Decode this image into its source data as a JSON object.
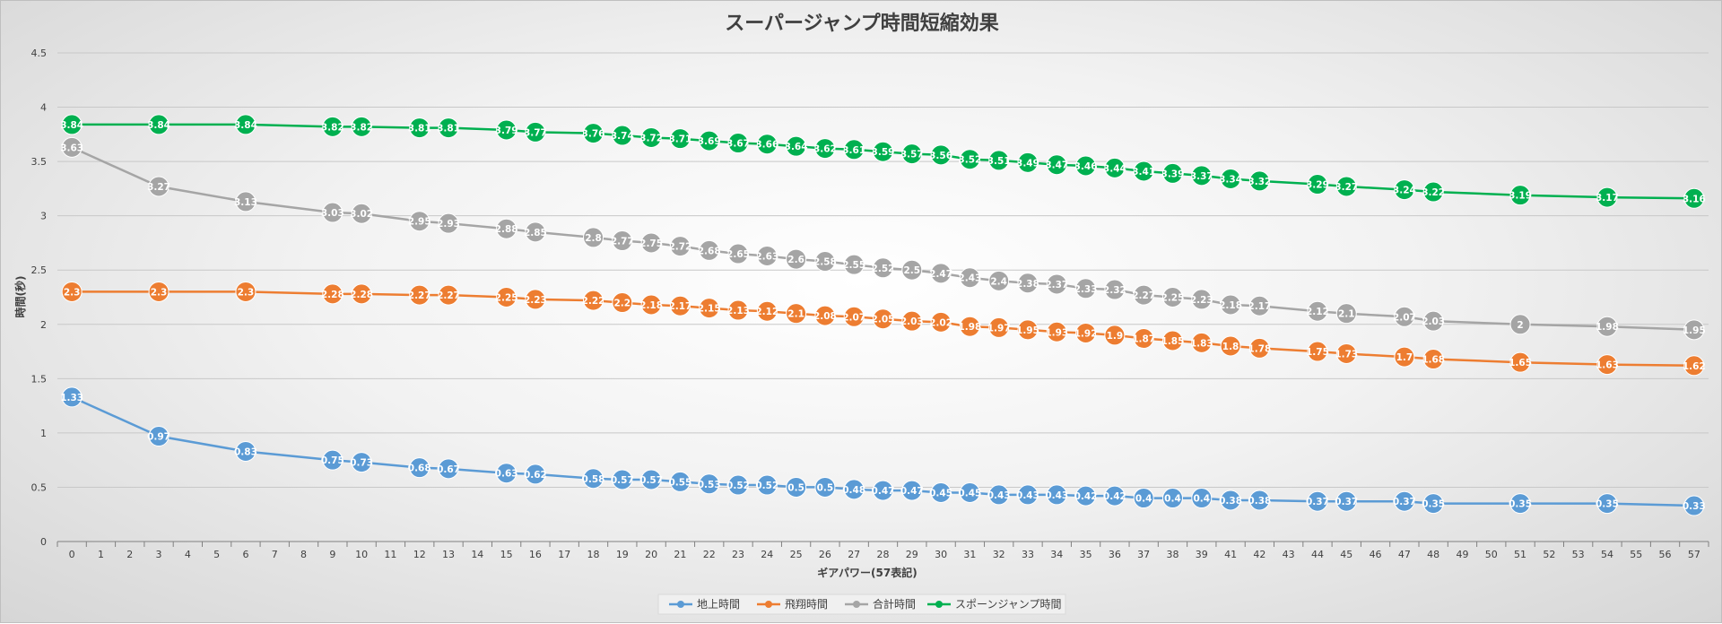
{
  "chart_data": {
    "type": "line",
    "title": "スーパージャンプ時間短縮効果",
    "xlabel": "ギアパワー(57表記)",
    "ylabel": "時間(秒)",
    "ylim": [
      0,
      4.5
    ],
    "yticks": [
      "0",
      "0.5",
      "1",
      "1.5",
      "2",
      "2.5",
      "3",
      "3.5",
      "4",
      "4.5"
    ],
    "categories": [
      "0",
      "1",
      "2",
      "3",
      "4",
      "5",
      "6",
      "7",
      "8",
      "9",
      "10",
      "11",
      "12",
      "13",
      "14",
      "15",
      "16",
      "17",
      "18",
      "19",
      "20",
      "21",
      "22",
      "23",
      "24",
      "25",
      "26",
      "27",
      "28",
      "29",
      "30",
      "31",
      "32",
      "33",
      "34",
      "35",
      "36",
      "37",
      "38",
      "39",
      "41",
      "42",
      "43",
      "44",
      "45",
      "46",
      "47",
      "48",
      "49",
      "50",
      "51",
      "52",
      "53",
      "54",
      "55",
      "56",
      "57"
    ],
    "grid": true,
    "legend_position": "bottom",
    "series": [
      {
        "name": "地上時間",
        "color": "#5b9bd5",
        "x": [
          "0",
          "3",
          "6",
          "9",
          "10",
          "12",
          "13",
          "15",
          "16",
          "18",
          "19",
          "20",
          "21",
          "22",
          "23",
          "24",
          "25",
          "26",
          "27",
          "28",
          "29",
          "30",
          "31",
          "32",
          "33",
          "34",
          "35",
          "36",
          "37",
          "38",
          "39",
          "41",
          "42",
          "44",
          "45",
          "47",
          "48",
          "51",
          "54",
          "57"
        ],
        "values": [
          1.33,
          0.97,
          0.83,
          0.75,
          0.73,
          0.68,
          0.67,
          0.63,
          0.62,
          0.58,
          0.57,
          0.57,
          0.55,
          0.53,
          0.52,
          0.52,
          0.5,
          0.5,
          0.48,
          0.47,
          0.47,
          0.45,
          0.45,
          0.43,
          0.43,
          0.43,
          0.42,
          0.42,
          0.4,
          0.4,
          0.4,
          0.38,
          0.38,
          0.37,
          0.37,
          0.37,
          0.35,
          0.35,
          0.35,
          0.33
        ],
        "labels": [
          "1.33",
          "0.97",
          "0.83",
          "0.75",
          "0.73",
          "0.68",
          "0.67",
          "0.63",
          "0.62",
          "0.58",
          "0.57",
          "0.57",
          "0.55",
          "0.53",
          "0.52",
          "0.52",
          "0.5",
          "0.5",
          "0.48",
          "0.47",
          "0.47",
          "0.45",
          "0.45",
          "0.43",
          "0.43",
          "0.43",
          "0.42",
          "0.42",
          "0.4",
          "0.4",
          "0.4",
          "0.38",
          "0.38",
          "0.37",
          "0.37",
          "0.37",
          "0.35",
          "0.35",
          "0.35",
          "0.33"
        ]
      },
      {
        "name": "飛翔時間",
        "color": "#ed7d31",
        "x": [
          "0",
          "3",
          "6",
          "9",
          "10",
          "12",
          "13",
          "15",
          "16",
          "18",
          "19",
          "20",
          "21",
          "22",
          "23",
          "24",
          "25",
          "26",
          "27",
          "28",
          "29",
          "30",
          "31",
          "32",
          "33",
          "34",
          "35",
          "36",
          "37",
          "38",
          "39",
          "41",
          "42",
          "44",
          "45",
          "47",
          "48",
          "51",
          "54",
          "57"
        ],
        "values": [
          2.3,
          2.3,
          2.3,
          2.28,
          2.28,
          2.27,
          2.27,
          2.25,
          2.23,
          2.22,
          2.2,
          2.18,
          2.17,
          2.15,
          2.13,
          2.12,
          2.1,
          2.08,
          2.07,
          2.05,
          2.03,
          2.02,
          1.98,
          1.97,
          1.95,
          1.93,
          1.92,
          1.9,
          1.87,
          1.85,
          1.83,
          1.8,
          1.78,
          1.75,
          1.73,
          1.7,
          1.68,
          1.65,
          1.63,
          1.62
        ],
        "labels": [
          "2.3",
          "2.3",
          "2.3",
          "2.28",
          "2.28",
          "2.27",
          "2.27",
          "2.25",
          "2.23",
          "2.22",
          "2.2",
          "2.18",
          "2.17",
          "2.15",
          "2.13",
          "2.12",
          "2.1",
          "2.08",
          "2.07",
          "2.05",
          "2.03",
          "2.02",
          "1.98",
          "1.97",
          "1.95",
          "1.93",
          "1.92",
          "1.9",
          "1.87",
          "1.85",
          "1.83",
          "1.8",
          "1.78",
          "1.75",
          "1.73",
          "1.7",
          "1.68",
          "1.65",
          "1.63",
          "1.62"
        ]
      },
      {
        "name": "合計時間",
        "color": "#a5a5a5",
        "x": [
          "0",
          "3",
          "6",
          "9",
          "10",
          "12",
          "13",
          "15",
          "16",
          "18",
          "19",
          "20",
          "21",
          "22",
          "23",
          "24",
          "25",
          "26",
          "27",
          "28",
          "29",
          "30",
          "31",
          "32",
          "33",
          "34",
          "35",
          "36",
          "37",
          "38",
          "39",
          "41",
          "42",
          "44",
          "45",
          "47",
          "48",
          "51",
          "54",
          "57"
        ],
        "values": [
          3.63,
          3.27,
          3.13,
          3.03,
          3.02,
          2.95,
          2.93,
          2.88,
          2.85,
          2.8,
          2.77,
          2.75,
          2.72,
          2.68,
          2.65,
          2.63,
          2.6,
          2.58,
          2.55,
          2.52,
          2.5,
          2.47,
          2.43,
          2.4,
          2.38,
          2.37,
          2.33,
          2.32,
          2.27,
          2.25,
          2.23,
          2.18,
          2.17,
          2.12,
          2.1,
          2.07,
          2.03,
          2.0,
          1.98,
          1.95
        ],
        "labels": [
          "3.63",
          "3.27",
          "3.13",
          "3.03",
          "3.02",
          "2.95",
          "2.93",
          "2.88",
          "2.85",
          "2.8",
          "2.77",
          "2.75",
          "2.72",
          "2.68",
          "2.65",
          "2.63",
          "2.6",
          "2.58",
          "2.55",
          "2.52",
          "2.5",
          "2.47",
          "2.43",
          "2.4",
          "2.38",
          "2.37",
          "2.33",
          "2.32",
          "2.27",
          "2.25",
          "2.23",
          "2.18",
          "2.17",
          "2.12",
          "2.1",
          "2.07",
          "2.03",
          "2",
          "1.98",
          "1.95"
        ]
      },
      {
        "name": "スポーンジャンプ時間",
        "color": "#00b050",
        "x": [
          "0",
          "3",
          "6",
          "9",
          "10",
          "12",
          "13",
          "15",
          "16",
          "18",
          "19",
          "20",
          "21",
          "22",
          "23",
          "24",
          "25",
          "26",
          "27",
          "28",
          "29",
          "30",
          "31",
          "32",
          "33",
          "34",
          "35",
          "36",
          "37",
          "38",
          "39",
          "41",
          "42",
          "44",
          "45",
          "47",
          "48",
          "51",
          "54",
          "57"
        ],
        "values": [
          3.84,
          3.84,
          3.84,
          3.82,
          3.82,
          3.81,
          3.81,
          3.79,
          3.77,
          3.76,
          3.74,
          3.72,
          3.71,
          3.69,
          3.67,
          3.66,
          3.64,
          3.62,
          3.61,
          3.59,
          3.57,
          3.56,
          3.52,
          3.51,
          3.49,
          3.47,
          3.46,
          3.44,
          3.41,
          3.39,
          3.37,
          3.34,
          3.32,
          3.29,
          3.27,
          3.24,
          3.22,
          3.19,
          3.17,
          3.16
        ],
        "labels": [
          "3.84",
          "3.84",
          "3.84",
          "3.82",
          "3.82",
          "3.81",
          "3.81",
          "3.79",
          "3.77",
          "3.76",
          "3.74",
          "3.72",
          "3.71",
          "3.69",
          "3.67",
          "3.66",
          "3.64",
          "3.62",
          "3.61",
          "3.59",
          "3.57",
          "3.56",
          "3.52",
          "3.51",
          "3.49",
          "3.47",
          "3.46",
          "3.44",
          "3.41",
          "3.39",
          "3.37",
          "3.34",
          "3.32",
          "3.29",
          "3.27",
          "3.24",
          "3.22",
          "3.19",
          "3.17",
          "3.16"
        ]
      }
    ]
  }
}
